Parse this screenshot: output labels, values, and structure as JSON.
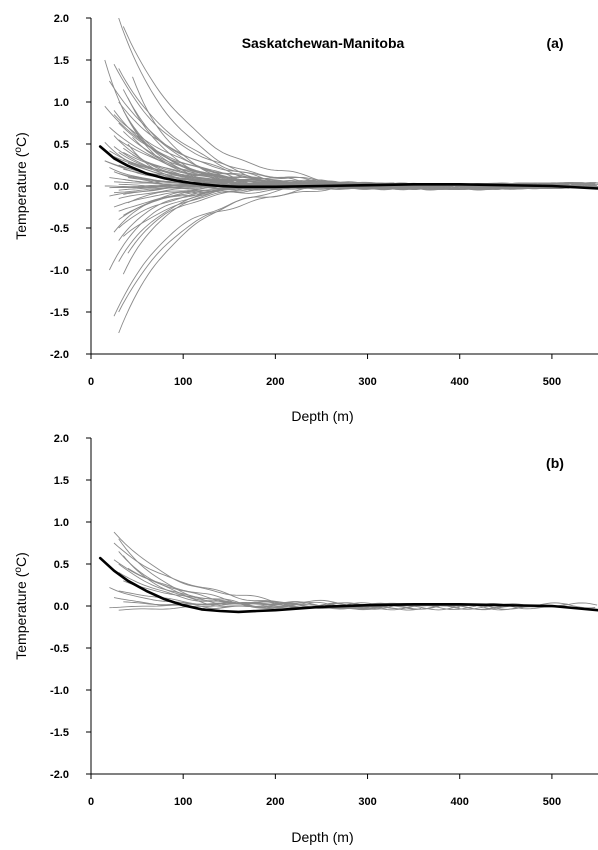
{
  "chart_data": [
    {
      "type": "line",
      "panel_label": "(a)",
      "title": "Saskatchewan-Manitoba",
      "xlabel": "Depth (m)",
      "ylabel": "Temperature (oC)",
      "xlim": [
        0,
        550
      ],
      "ylim": [
        -2.0,
        2.0
      ],
      "xticks": [
        "0",
        "100",
        "200",
        "300",
        "400",
        "500"
      ],
      "yticks": [
        "2.0",
        "1.5",
        "1.0",
        "0.5",
        "0.0",
        "-0.5",
        "-1.0",
        "-1.5",
        "-2.0"
      ],
      "grid": false,
      "colors": {
        "individual": "#8a8a8a",
        "mean": "#000000"
      },
      "mean_curve": {
        "x": [
          10,
          25,
          40,
          60,
          80,
          100,
          120,
          140,
          160,
          180,
          200,
          250,
          300,
          350,
          400,
          450,
          500,
          550
        ],
        "y": [
          0.47,
          0.33,
          0.24,
          0.15,
          0.09,
          0.05,
          0.02,
          0.0,
          -0.01,
          -0.01,
          -0.01,
          0.0,
          0.01,
          0.02,
          0.02,
          0.01,
          0.0,
          -0.03
        ]
      },
      "individual_profiles": {
        "count": 70,
        "start_temperatures": [
          2.0,
          1.9,
          1.5,
          1.45,
          1.4,
          1.3,
          1.25,
          1.15,
          1.05,
          1.0,
          0.95,
          0.9,
          0.85,
          0.8,
          0.75,
          0.7,
          0.65,
          0.6,
          0.58,
          0.55,
          0.52,
          0.5,
          0.47,
          0.45,
          0.42,
          0.4,
          0.37,
          0.35,
          0.32,
          0.3,
          0.27,
          0.25,
          0.22,
          0.2,
          0.17,
          0.15,
          0.12,
          0.1,
          0.08,
          0.05,
          0.02,
          0.0,
          -0.02,
          -0.05,
          -0.08,
          -0.1,
          -0.12,
          -0.15,
          -0.2,
          -0.25,
          -0.3,
          -0.35,
          -0.4,
          -0.5,
          -0.55,
          -0.6,
          -0.65,
          -0.8,
          -0.9,
          -1.0,
          -1.05,
          -1.5,
          -1.55,
          -1.75,
          0.3,
          0.6,
          0.1,
          -0.02,
          0.9,
          0.4
        ],
        "start_depths_m": [
          30,
          35,
          15,
          25,
          30,
          45,
          20,
          35,
          40,
          30,
          15,
          35,
          25,
          40,
          30,
          20,
          35,
          25,
          45,
          30,
          15,
          40,
          25,
          35,
          20,
          30,
          45,
          25,
          35,
          15,
          40,
          30,
          20,
          35,
          25,
          30,
          45,
          20,
          35,
          25,
          30,
          15,
          40,
          30,
          25,
          35,
          20,
          30,
          40,
          25,
          30,
          35,
          30,
          30,
          25,
          35,
          30,
          40,
          30,
          20,
          35,
          30,
          25,
          30,
          15,
          50,
          40,
          20,
          25,
          35
        ],
        "end_depths_m": [
          520,
          480,
          550,
          300,
          520,
          250,
          470,
          550,
          300,
          420,
          550,
          500,
          330,
          470,
          550,
          260,
          520,
          400,
          550,
          490,
          300,
          550,
          430,
          520,
          270,
          550,
          480,
          350,
          550,
          510,
          290,
          550,
          460,
          380,
          550,
          520,
          300,
          550,
          440,
          490,
          550,
          270,
          550,
          520,
          360,
          550,
          480,
          550,
          300,
          520,
          550,
          460,
          550,
          330,
          550,
          500,
          550,
          420,
          550,
          550,
          300,
          550,
          480,
          550,
          230,
          400,
          550,
          380,
          520,
          470
        ]
      }
    },
    {
      "type": "line",
      "panel_label": "(b)",
      "title": "",
      "xlabel": "Depth (m)",
      "ylabel": "Temperature (oC)",
      "xlim": [
        0,
        550
      ],
      "ylim": [
        -2.0,
        2.0
      ],
      "xticks": [
        "0",
        "100",
        "200",
        "300",
        "400",
        "500"
      ],
      "yticks": [
        "2.0",
        "1.5",
        "1.0",
        "0.5",
        "0.0",
        "-0.5",
        "-1.0",
        "-1.5",
        "-2.0"
      ],
      "grid": false,
      "colors": {
        "individual": "#8a8a8a",
        "mean": "#000000"
      },
      "mean_curve": {
        "x": [
          10,
          25,
          40,
          60,
          80,
          100,
          120,
          140,
          160,
          180,
          200,
          250,
          300,
          350,
          400,
          450,
          500,
          550
        ],
        "y": [
          0.57,
          0.42,
          0.3,
          0.18,
          0.08,
          0.01,
          -0.04,
          -0.06,
          -0.07,
          -0.06,
          -0.05,
          -0.01,
          0.01,
          0.02,
          0.02,
          0.01,
          0.0,
          -0.05
        ]
      },
      "individual_profiles": {
        "count": 16,
        "start_temperatures": [
          0.88,
          0.8,
          0.75,
          0.65,
          0.6,
          0.55,
          0.5,
          0.45,
          0.4,
          0.3,
          0.22,
          0.18,
          0.1,
          0.05,
          -0.02,
          -0.05
        ],
        "start_depths_m": [
          25,
          30,
          25,
          30,
          35,
          25,
          30,
          40,
          30,
          35,
          20,
          30,
          25,
          35,
          20,
          30
        ],
        "end_depths_m": [
          470,
          300,
          550,
          420,
          380,
          520,
          360,
          470,
          300,
          550,
          400,
          330,
          520,
          270,
          460,
          380
        ]
      }
    }
  ]
}
